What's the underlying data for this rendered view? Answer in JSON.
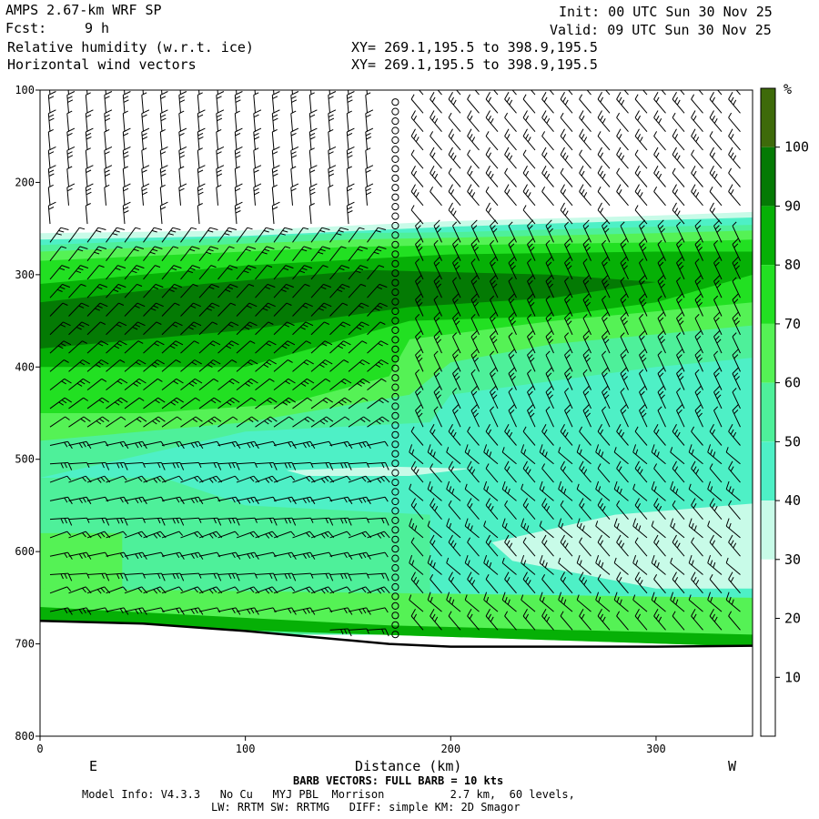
{
  "header": {
    "title": "AMPS 2.67-km WRF SP",
    "fcst_label": "Fcst:",
    "fcst_value": "9 h",
    "field1": "Relative humidity (w.r.t. ice)",
    "field2": "Horizontal wind vectors",
    "init": "Init: 00 UTC Sun 30 Nov 25",
    "valid": "Valid: 09 UTC Sun 30 Nov 25",
    "xy1": "XY= 269.1,195.5 to 398.9,195.5",
    "xy2": "XY= 269.1,195.5 to 398.9,195.5"
  },
  "footer": {
    "barb_note": "BARB VECTORS: FULL BARB = 10 kts",
    "model_info": "Model Info: V4.3.3   No Cu   MYJ PBL  Morrison          2.7 km,  60 levels,",
    "model_info2": "LW: RRTM SW: RRTMG   DIFF: simple KM: 2D Smagor"
  },
  "chart_data": {
    "type": "heatmap",
    "xlabel": "Distance (km)",
    "ylabel": "",
    "x_ticks": [
      0,
      100,
      200,
      300
    ],
    "y_ticks": [
      100,
      200,
      300,
      400,
      500,
      600,
      700,
      800
    ],
    "xlim": [
      0,
      347
    ],
    "ylim": [
      800,
      100
    ],
    "x_end_labels": {
      "left": "E",
      "right": "W"
    },
    "colorbar": {
      "unit": "%",
      "ticks": [
        10,
        20,
        30,
        40,
        50,
        60,
        70,
        80,
        90,
        100
      ],
      "bins": [
        {
          "min": 0,
          "max": 10,
          "color": "#ffffff"
        },
        {
          "min": 10,
          "max": 20,
          "color": "#ffffff"
        },
        {
          "min": 20,
          "max": 30,
          "color": "#ffffff"
        },
        {
          "min": 30,
          "max": 40,
          "color": "#c8fbe8"
        },
        {
          "min": 40,
          "max": 50,
          "color": "#4ef0c6"
        },
        {
          "min": 50,
          "max": 60,
          "color": "#4ef09a"
        },
        {
          "min": 60,
          "max": 70,
          "color": "#55f255"
        },
        {
          "min": 70,
          "max": 80,
          "color": "#22e022"
        },
        {
          "min": 80,
          "max": 90,
          "color": "#06b006"
        },
        {
          "min": 90,
          "max": 100,
          "color": "#047a04"
        },
        {
          "min": 100,
          "max": 110,
          "color": "#3e6a0a"
        }
      ]
    },
    "terrain": [
      {
        "x": 0,
        "p": 675
      },
      {
        "x": 50,
        "p": 678
      },
      {
        "x": 100,
        "p": 686
      },
      {
        "x": 150,
        "p": 696
      },
      {
        "x": 170,
        "p": 700
      },
      {
        "x": 200,
        "p": 703
      },
      {
        "x": 250,
        "p": 703
      },
      {
        "x": 300,
        "p": 703
      },
      {
        "x": 347,
        "p": 702
      }
    ],
    "rh_regions": [
      {
        "level": 35,
        "color": "#c8fbe8",
        "polygon": [
          [
            0,
            255
          ],
          [
            100,
            252
          ],
          [
            200,
            242
          ],
          [
            300,
            236
          ],
          [
            347,
            232
          ],
          [
            347,
            300
          ],
          [
            0,
            300
          ]
        ]
      },
      {
        "level": 45,
        "color": "#4ef0c6",
        "polygon": [
          [
            0,
            262
          ],
          [
            100,
            258
          ],
          [
            200,
            248
          ],
          [
            300,
            241
          ],
          [
            347,
            238
          ],
          [
            347,
            690
          ],
          [
            0,
            690
          ]
        ]
      },
      {
        "level": 55,
        "color": "#4ef09a",
        "polygon": [
          [
            0,
            268
          ],
          [
            150,
            255
          ],
          [
            200,
            254
          ],
          [
            300,
            248
          ],
          [
            347,
            246
          ],
          [
            347,
            390
          ],
          [
            300,
            400
          ],
          [
            200,
            430
          ],
          [
            190,
            460
          ],
          [
            100,
            470
          ],
          [
            0,
            520
          ],
          [
            0,
            690
          ],
          [
            347,
            690
          ],
          [
            347,
            660
          ],
          [
            250,
            660
          ],
          [
            190,
            650
          ],
          [
            190,
            560
          ],
          [
            100,
            550
          ],
          [
            60,
            520
          ],
          [
            0,
            520
          ]
        ]
      },
      {
        "level": 65,
        "color": "#55f255",
        "polygon": [
          [
            0,
            275
          ],
          [
            150,
            262
          ],
          [
            200,
            260
          ],
          [
            300,
            255
          ],
          [
            347,
            252
          ],
          [
            347,
            355
          ],
          [
            250,
            375
          ],
          [
            200,
            395
          ],
          [
            180,
            430
          ],
          [
            100,
            460
          ],
          [
            0,
            480
          ],
          [
            0,
            690
          ],
          [
            40,
            690
          ],
          [
            40,
            580
          ],
          [
            0,
            580
          ]
        ]
      },
      {
        "level": 75,
        "color": "#22e022",
        "polygon": [
          [
            0,
            285
          ],
          [
            150,
            270
          ],
          [
            200,
            268
          ],
          [
            300,
            265
          ],
          [
            347,
            262
          ],
          [
            347,
            330
          ],
          [
            250,
            350
          ],
          [
            180,
            370
          ],
          [
            170,
            410
          ],
          [
            120,
            440
          ],
          [
            50,
            450
          ],
          [
            0,
            450
          ]
        ]
      },
      {
        "level": 85,
        "color": "#06b006",
        "polygon": [
          [
            0,
            310
          ],
          [
            100,
            290
          ],
          [
            200,
            278
          ],
          [
            300,
            275
          ],
          [
            347,
            275
          ],
          [
            347,
            300
          ],
          [
            300,
            330
          ],
          [
            250,
            345
          ],
          [
            180,
            350
          ],
          [
            100,
            400
          ],
          [
            0,
            400
          ]
        ]
      },
      {
        "level": 95,
        "color": "#047a04",
        "polygon": [
          [
            0,
            330
          ],
          [
            80,
            310
          ],
          [
            160,
            295
          ],
          [
            250,
            300
          ],
          [
            300,
            308
          ],
          [
            250,
            325
          ],
          [
            180,
            335
          ],
          [
            100,
            360
          ],
          [
            0,
            380
          ]
        ]
      },
      {
        "level": 35,
        "color": "#c8fbe8",
        "polygon": [
          [
            220,
            590
          ],
          [
            280,
            560
          ],
          [
            347,
            548
          ],
          [
            347,
            640
          ],
          [
            300,
            640
          ],
          [
            230,
            610
          ]
        ]
      },
      {
        "level": 35,
        "color": "#c8fbe8",
        "polygon": [
          [
            120,
            512
          ],
          [
            170,
            508
          ],
          [
            210,
            510
          ],
          [
            180,
            518
          ],
          [
            130,
            518
          ]
        ]
      },
      {
        "level": 65,
        "color": "#55f255",
        "polygon": [
          [
            0,
            640
          ],
          [
            347,
            650
          ],
          [
            347,
            703
          ],
          [
            0,
            678
          ]
        ]
      },
      {
        "level": 85,
        "color": "#06b006",
        "polygon": [
          [
            0,
            660
          ],
          [
            170,
            680
          ],
          [
            347,
            690
          ],
          [
            347,
            703
          ],
          [
            0,
            678
          ]
        ]
      }
    ],
    "marker_column_x": 173
  }
}
